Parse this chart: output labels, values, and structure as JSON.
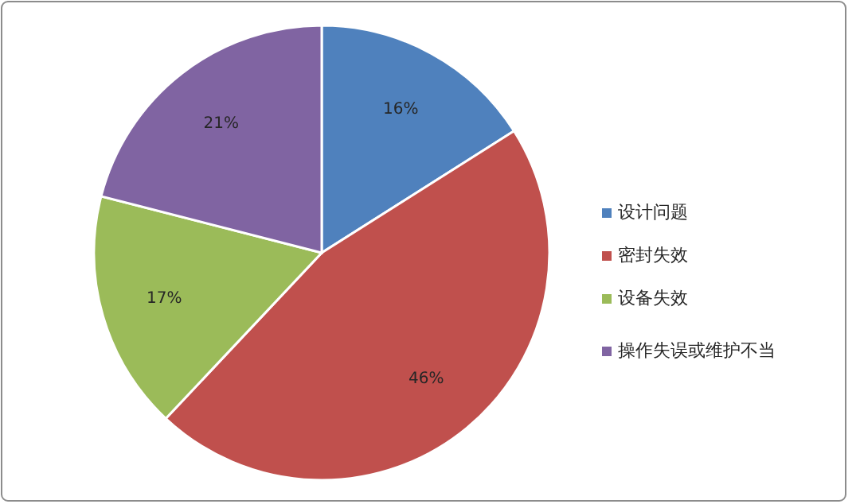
{
  "chart_data": {
    "type": "pie",
    "categories": [
      "设计问题",
      "密封失效",
      "设备失效",
      "操作失误或维护不当"
    ],
    "values": [
      16,
      46,
      17,
      21
    ],
    "colors": [
      "#4f81bd",
      "#c0504d",
      "#9bbb59",
      "#8064a2"
    ],
    "value_labels": [
      "16%",
      "46%",
      "17%",
      "21%"
    ],
    "legend": "right"
  }
}
